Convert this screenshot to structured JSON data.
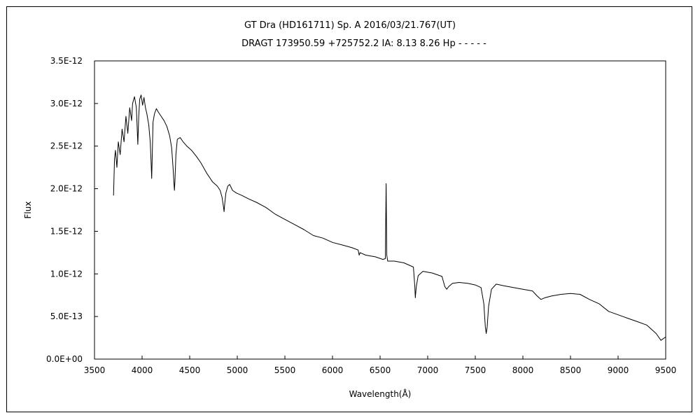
{
  "chart_data": {
    "type": "line",
    "title": "GT Dra (HD161711)    Sp. A    2016/03/21.767(UT)",
    "subtitle": "DRAGT 173950.59 +725752.2 IA: 8.13 8.26 Hp - - - - -",
    "xlabel": "Wavelength(Å)",
    "ylabel": "Flux",
    "xlim": [
      3500,
      9500
    ],
    "ylim": [
      0,
      3.5e-12
    ],
    "x_ticks": [
      3500,
      4000,
      4500,
      5000,
      5500,
      6000,
      6500,
      7000,
      7500,
      8000,
      8500,
      9000,
      9500
    ],
    "x_tick_labels": [
      "3500",
      "4000",
      "4500",
      "5000",
      "5500",
      "6000",
      "6500",
      "7000",
      "7500",
      "8000",
      "8500",
      "9000",
      "9500"
    ],
    "y_ticks": [
      0,
      5e-13,
      1e-12,
      1.5e-12,
      2e-12,
      2.5e-12,
      3e-12,
      3.5e-12
    ],
    "y_tick_labels": [
      "0.0E+00",
      "5.0E-13",
      "1.0E-12",
      "1.5E-12",
      "2.0E-12",
      "2.5E-12",
      "3.0E-12",
      "3.5E-12"
    ],
    "grid": false,
    "legend": "none",
    "series": [
      {
        "color": "#000000",
        "x": [
          3700,
          3710,
          3720,
          3735,
          3750,
          3770,
          3790,
          3810,
          3830,
          3850,
          3870,
          3890,
          3900,
          3920,
          3940,
          3955,
          3965,
          3975,
          3990,
          4005,
          4020,
          4035,
          4050,
          4070,
          4085,
          4095,
          4101,
          4106,
          4115,
          4130,
          4150,
          4170,
          4200,
          4230,
          4260,
          4290,
          4310,
          4325,
          4335,
          4340,
          4345,
          4355,
          4370,
          4400,
          4430,
          4470,
          4520,
          4570,
          4620,
          4680,
          4740,
          4790,
          4820,
          4840,
          4856,
          4861,
          4868,
          4880,
          4900,
          4920,
          4950,
          4990,
          5050,
          5120,
          5200,
          5300,
          5400,
          5500,
          5600,
          5700,
          5800,
          5900,
          6000,
          6100,
          6200,
          6270,
          6280,
          6290,
          6350,
          6450,
          6530,
          6555,
          6563,
          6570,
          6580,
          6650,
          6750,
          6850,
          6865,
          6870,
          6880,
          6900,
          6950,
          7050,
          7150,
          7180,
          7200,
          7220,
          7260,
          7330,
          7420,
          7500,
          7560,
          7590,
          7605,
          7615,
          7625,
          7640,
          7670,
          7720,
          7800,
          7900,
          8000,
          8100,
          8150,
          8190,
          8230,
          8300,
          8400,
          8500,
          8600,
          8700,
          8800,
          8900,
          9000,
          9100,
          9200,
          9300,
          9350,
          9400,
          9450,
          9500
        ],
        "values": [
          1.92e-12,
          2.35e-12,
          2.45e-12,
          2.25e-12,
          2.55e-12,
          2.4e-12,
          2.7e-12,
          2.55e-12,
          2.85e-12,
          2.65e-12,
          2.95e-12,
          2.8e-12,
          3e-12,
          3.08e-12,
          2.95e-12,
          2.52e-12,
          2.85e-12,
          3.05e-12,
          3.1e-12,
          2.98e-12,
          3.07e-12,
          2.95e-12,
          2.88e-12,
          2.75e-12,
          2.55e-12,
          2.3e-12,
          2.12e-12,
          2.35e-12,
          2.78e-12,
          2.88e-12,
          2.94e-12,
          2.9e-12,
          2.85e-12,
          2.8e-12,
          2.73e-12,
          2.62e-12,
          2.48e-12,
          2.25e-12,
          2.05e-12,
          1.98e-12,
          2.08e-12,
          2.4e-12,
          2.58e-12,
          2.6e-12,
          2.55e-12,
          2.5e-12,
          2.45e-12,
          2.38e-12,
          2.3e-12,
          2.18e-12,
          2.08e-12,
          2.03e-12,
          1.98e-12,
          1.9e-12,
          1.78e-12,
          1.73e-12,
          1.82e-12,
          1.95e-12,
          2.03e-12,
          2.05e-12,
          1.98e-12,
          1.95e-12,
          1.92e-12,
          1.88e-12,
          1.84e-12,
          1.78e-12,
          1.7e-12,
          1.64e-12,
          1.58e-12,
          1.52e-12,
          1.45e-12,
          1.42e-12,
          1.37e-12,
          1.34e-12,
          1.31e-12,
          1.28e-12,
          1.22e-12,
          1.25e-12,
          1.22e-12,
          1.2e-12,
          1.17e-12,
          1.18e-12,
          2.06e-12,
          1.22e-12,
          1.15e-12,
          1.15e-12,
          1.13e-12,
          1.08e-12,
          8.5e-13,
          7.2e-13,
          8.5e-13,
          9.8e-13,
          1.03e-12,
          1.01e-12,
          9.7e-13,
          8.5e-13,
          8.2e-13,
          8.5e-13,
          8.9e-13,
          9e-13,
          8.9e-13,
          8.7e-13,
          8.4e-13,
          6.5e-13,
          3.8e-13,
          3e-13,
          3.8e-13,
          6.2e-13,
          8.2e-13,
          8.8e-13,
          8.6e-13,
          8.4e-13,
          8.2e-13,
          8e-13,
          7.4e-13,
          7e-13,
          7.2e-13,
          7.4e-13,
          7.6e-13,
          7.7e-13,
          7.6e-13,
          7e-13,
          6.5e-13,
          5.6e-13,
          5.2e-13,
          4.8e-13,
          4.4e-13,
          4e-13,
          3.5e-13,
          3e-13,
          2.2e-13,
          2.6e-13
        ]
      }
    ]
  }
}
